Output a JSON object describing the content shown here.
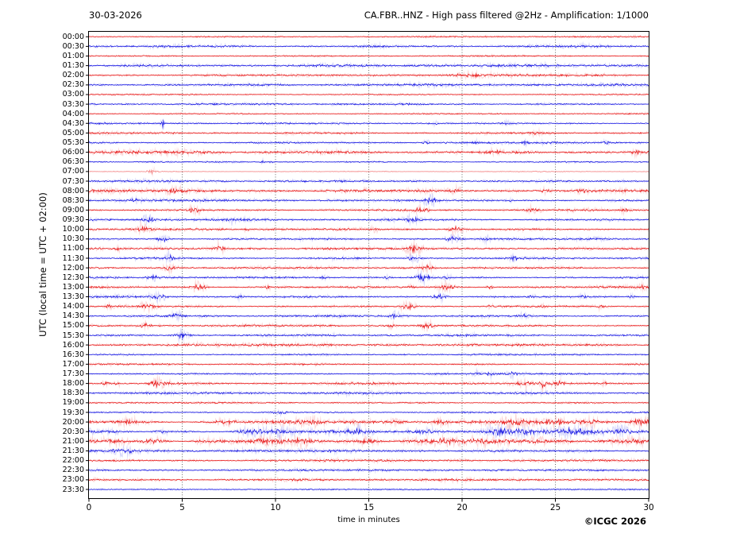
{
  "chart_data": {
    "type": "helicorder-seismogram",
    "date": "30-03-2026",
    "title": "CA.FBR..HNZ - High pass filtered @2Hz - Amplification: 1/1000",
    "ylabel": "UTC (local time = UTC + 02:00)",
    "xlabel": "time in minutes",
    "copyright": "©ICGC 2026",
    "x_range": [
      0,
      30
    ],
    "x_ticks": [
      0,
      5,
      10,
      15,
      20,
      25,
      30
    ],
    "x_gridlines": [
      5,
      10,
      15,
      20,
      25
    ],
    "row_interval_minutes": 30,
    "legend_position": "none",
    "grid": "vertical-dotted",
    "colors": {
      "trace_red": "#e60000",
      "trace_blue": "#0000e0",
      "grid": "#444444",
      "axis": "#000000",
      "background": "#ffffff"
    },
    "event_format": "[minute, relative_amplitude, width_px]",
    "rows": [
      {
        "t": "00:00",
        "c": "red",
        "n": 0.5,
        "e": []
      },
      {
        "t": "00:30",
        "c": "blue",
        "n": 0.85,
        "e": []
      },
      {
        "t": "01:00",
        "c": "red",
        "n": 0.45,
        "e": []
      },
      {
        "t": "01:30",
        "c": "blue",
        "n": 0.95,
        "e": []
      },
      {
        "t": "02:00",
        "c": "red",
        "n": 0.8,
        "e": [
          [
            20.4,
            1.2,
            12
          ]
        ]
      },
      {
        "t": "02:30",
        "c": "blue",
        "n": 0.85,
        "e": []
      },
      {
        "t": "03:00",
        "c": "red",
        "n": 0.5,
        "e": []
      },
      {
        "t": "03:30",
        "c": "blue",
        "n": 0.65,
        "e": []
      },
      {
        "t": "04:00",
        "c": "red",
        "n": 0.5,
        "e": []
      },
      {
        "t": "04:30",
        "c": "blue",
        "n": 0.6,
        "e": [
          [
            3.95,
            4.5,
            1.3
          ],
          [
            18.6,
            1.1,
            3
          ],
          [
            22.4,
            1.2,
            3
          ]
        ]
      },
      {
        "t": "05:00",
        "c": "red",
        "n": 0.75,
        "e": [
          [
            23.9,
            0.9,
            6
          ]
        ]
      },
      {
        "t": "05:30",
        "c": "blue",
        "n": 0.7,
        "e": [
          [
            18.1,
            1.1,
            3
          ],
          [
            20.7,
            0.9,
            3
          ],
          [
            23.4,
            1.2,
            3
          ],
          [
            27.8,
            1.4,
            4
          ]
        ]
      },
      {
        "t": "06:00",
        "c": "red",
        "n": 1.1,
        "e": [
          [
            21.7,
            1.0,
            6
          ],
          [
            29.3,
            1.2,
            5
          ]
        ]
      },
      {
        "t": "06:30",
        "c": "blue",
        "n": 0.5,
        "e": [
          [
            9.3,
            1.4,
            2
          ],
          [
            9.8,
            1.1,
            2
          ]
        ]
      },
      {
        "t": "07:00",
        "c": "red",
        "n": 0.3,
        "pale": true,
        "e": [
          [
            3.4,
            1.8,
            5
          ]
        ]
      },
      {
        "t": "07:30",
        "c": "blue",
        "n": 0.8,
        "e": []
      },
      {
        "t": "08:00",
        "c": "red",
        "n": 1.2,
        "e": [
          [
            4.6,
            1.4,
            5
          ],
          [
            19.7,
            1.8,
            5
          ],
          [
            24.5,
            1.3,
            4
          ],
          [
            26.5,
            1.4,
            4
          ]
        ]
      },
      {
        "t": "08:30",
        "c": "blue",
        "n": 0.8,
        "e": [
          [
            2.6,
            1.2,
            5
          ],
          [
            18.3,
            2.2,
            6
          ],
          [
            22.5,
            1.1,
            3
          ]
        ]
      },
      {
        "t": "09:00",
        "c": "red",
        "n": 0.8,
        "e": [
          [
            5.65,
            2.5,
            5
          ],
          [
            17.8,
            2.3,
            6
          ],
          [
            23.7,
            1.2,
            4
          ],
          [
            28.7,
            1.6,
            5
          ]
        ]
      },
      {
        "t": "09:30",
        "c": "blue",
        "n": 0.8,
        "e": [
          [
            3.2,
            2.6,
            5
          ],
          [
            7.6,
            1.4,
            3
          ],
          [
            17.4,
            2.6,
            6
          ]
        ]
      },
      {
        "t": "10:00",
        "c": "red",
        "n": 0.75,
        "e": [
          [
            2.85,
            2.6,
            5
          ],
          [
            8.4,
            1.0,
            3
          ],
          [
            15.3,
            1.0,
            3
          ],
          [
            19.6,
            2.6,
            6
          ]
        ]
      },
      {
        "t": "10:30",
        "c": "blue",
        "n": 0.75,
        "e": [
          [
            4.0,
            2.6,
            5
          ],
          [
            19.5,
            2.5,
            6
          ],
          [
            21.3,
            1.2,
            3
          ]
        ]
      },
      {
        "t": "11:00",
        "c": "red",
        "n": 0.75,
        "e": [
          [
            1.6,
            1.0,
            3
          ],
          [
            6.95,
            2.5,
            5
          ],
          [
            17.4,
            2.5,
            6
          ]
        ]
      },
      {
        "t": "11:30",
        "c": "blue",
        "n": 0.75,
        "e": [
          [
            4.35,
            2.4,
            5
          ],
          [
            17.4,
            2.5,
            6
          ],
          [
            22.75,
            1.4,
            4
          ]
        ]
      },
      {
        "t": "12:00",
        "c": "red",
        "n": 0.7,
        "e": [
          [
            4.3,
            2.4,
            5
          ],
          [
            18.1,
            2.4,
            6
          ]
        ]
      },
      {
        "t": "12:30",
        "c": "blue",
        "n": 0.7,
        "e": [
          [
            3.4,
            2.4,
            5
          ],
          [
            12.6,
            1.1,
            3
          ],
          [
            16.0,
            1.0,
            3
          ],
          [
            17.9,
            2.5,
            6
          ],
          [
            19.2,
            1.3,
            3
          ]
        ]
      },
      {
        "t": "13:00",
        "c": "red",
        "n": 0.8,
        "e": [
          [
            5.9,
            2.7,
            6
          ],
          [
            9.6,
            1.1,
            3
          ],
          [
            17.3,
            1.1,
            3
          ],
          [
            19.2,
            2.6,
            6
          ],
          [
            21.5,
            1.3,
            3
          ],
          [
            29.7,
            1.5,
            4
          ]
        ]
      },
      {
        "t": "13:30",
        "c": "blue",
        "n": 0.75,
        "e": [
          [
            3.7,
            2.7,
            6
          ],
          [
            8.1,
            1.2,
            3
          ],
          [
            18.8,
            2.6,
            6
          ],
          [
            23.7,
            1.1,
            3
          ],
          [
            26.5,
            1.2,
            3
          ],
          [
            29.1,
            1.1,
            3
          ]
        ]
      },
      {
        "t": "14:00",
        "c": "red",
        "n": 0.7,
        "e": [
          [
            1.05,
            1.5,
            3
          ],
          [
            3.1,
            1.7,
            8
          ],
          [
            17.1,
            2.6,
            6
          ],
          [
            21.5,
            1.1,
            3
          ],
          [
            24.4,
            1.1,
            3
          ],
          [
            27.4,
            1.2,
            3
          ]
        ]
      },
      {
        "t": "14:30",
        "c": "blue",
        "n": 0.7,
        "e": [
          [
            4.7,
            2.3,
            5
          ],
          [
            16.4,
            2.2,
            5
          ],
          [
            23.35,
            1.4,
            5
          ]
        ]
      },
      {
        "t": "15:00",
        "c": "red",
        "n": 0.7,
        "e": [
          [
            2.95,
            2.3,
            5
          ],
          [
            16.2,
            1.1,
            3
          ],
          [
            18.1,
            2.4,
            6
          ]
        ]
      },
      {
        "t": "15:30",
        "c": "blue",
        "n": 0.7,
        "e": [
          [
            5.0,
            2.8,
            5
          ]
        ]
      },
      {
        "t": "16:00",
        "c": "red",
        "n": 0.9,
        "e": []
      },
      {
        "t": "16:30",
        "c": "blue",
        "n": 0.6,
        "e": []
      },
      {
        "t": "17:00",
        "c": "red",
        "n": 0.6,
        "e": []
      },
      {
        "t": "17:30",
        "c": "blue",
        "n": 0.7,
        "e": [
          [
            20.8,
            1.1,
            3
          ],
          [
            21.5,
            1.2,
            3
          ],
          [
            22.7,
            1.3,
            4
          ]
        ]
      },
      {
        "t": "18:00",
        "c": "red",
        "n": 0.8,
        "e": [
          [
            0.9,
            1.6,
            3
          ],
          [
            1.5,
            1.2,
            3
          ],
          [
            3.6,
            3.5,
            5
          ],
          [
            4.2,
            1.8,
            3
          ],
          [
            23.3,
            2.2,
            4
          ],
          [
            24.35,
            3.0,
            3
          ],
          [
            25.2,
            1.8,
            4
          ],
          [
            27.6,
            1.1,
            3
          ]
        ]
      },
      {
        "t": "18:30",
        "c": "blue",
        "n": 0.8,
        "e": []
      },
      {
        "t": "19:00",
        "c": "red",
        "n": 0.6,
        "e": []
      },
      {
        "t": "19:30",
        "c": "blue",
        "n": 0.55,
        "e": [
          [
            10.2,
            1.1,
            6
          ]
        ]
      },
      {
        "t": "20:00",
        "c": "red",
        "n": 1.2,
        "p": 0.9,
        "e": [
          [
            2.0,
            1.5,
            10
          ],
          [
            7.3,
            1.4,
            7
          ],
          [
            12.0,
            1.3,
            7
          ],
          [
            16.5,
            1.4,
            7
          ],
          [
            18.9,
            1.5,
            5
          ],
          [
            22.8,
            1.5,
            7
          ],
          [
            25.0,
            1.4,
            7
          ],
          [
            27.0,
            1.4,
            7
          ],
          [
            29.6,
            2.6,
            8
          ]
        ]
      },
      {
        "t": "20:30",
        "c": "blue",
        "n": 1.4,
        "p": 0.9,
        "e": [
          [
            4.0,
            1.3,
            8
          ],
          [
            8.6,
            1.6,
            10
          ],
          [
            10.1,
            1.6,
            7
          ],
          [
            14.5,
            1.7,
            10
          ],
          [
            18.0,
            1.6,
            8
          ],
          [
            22.0,
            1.8,
            10
          ],
          [
            23.3,
            1.7,
            7
          ],
          [
            26.0,
            1.3,
            7
          ],
          [
            28.5,
            1.4,
            7
          ]
        ]
      },
      {
        "t": "21:00",
        "c": "red",
        "n": 1.4,
        "p": 0.9,
        "e": [
          [
            1.5,
            1.6,
            10
          ],
          [
            3.5,
            1.6,
            10
          ],
          [
            6.0,
            1.4,
            8
          ],
          [
            9.5,
            1.5,
            10
          ],
          [
            11.5,
            1.5,
            8
          ],
          [
            15.0,
            1.3,
            8
          ],
          [
            19.0,
            1.3,
            8
          ],
          [
            24.0,
            1.2,
            8
          ]
        ]
      },
      {
        "t": "21:30",
        "c": "blue",
        "n": 0.9,
        "e": [
          [
            1.9,
            1.6,
            12
          ]
        ]
      },
      {
        "t": "22:00",
        "c": "red",
        "n": 0.8,
        "e": []
      },
      {
        "t": "22:30",
        "c": "blue",
        "n": 0.7,
        "e": []
      },
      {
        "t": "23:00",
        "c": "red",
        "n": 0.8,
        "e": []
      },
      {
        "t": "23:30",
        "c": "blue",
        "n": 0.45,
        "e": []
      }
    ]
  }
}
